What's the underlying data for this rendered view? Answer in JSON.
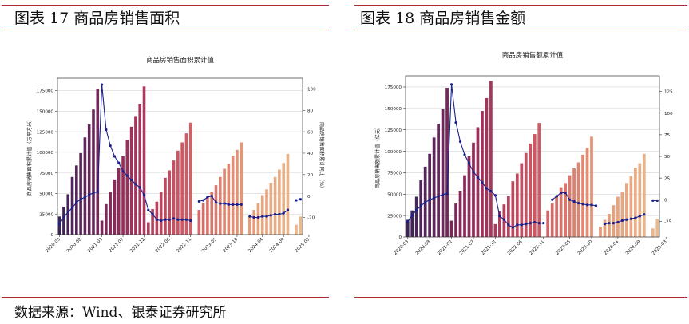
{
  "page": {
    "left_caption": "图表 17  商品房销售面积",
    "right_caption": "图表 18  商品房销售金额",
    "source": "数据来源：Wind、银泰证券研究所"
  },
  "chart_data": [
    {
      "type": "bar",
      "title": "商品房销售面积累计值",
      "ylabel": "商品房销售面积累计值（万平方米）",
      "y2label": "商品房销售面积累计同比（%）",
      "ylim": [
        0,
        190000
      ],
      "y_ticks": [
        0,
        25000,
        50000,
        75000,
        100000,
        125000,
        150000,
        175000
      ],
      "y2lim": [
        -36,
        110
      ],
      "y2_ticks": [
        -20,
        0,
        20,
        40,
        60,
        80,
        100
      ],
      "x_tick_labels": [
        "2020-03",
        "2020-08",
        "2021-02",
        "2021-07",
        "2021-12",
        "2022-06",
        "2022-11",
        "2023-05",
        "2023-10",
        "2024-04",
        "2024-09",
        "2025-03"
      ],
      "x_tick_index": [
        0,
        5,
        10,
        15,
        20,
        26,
        31,
        37,
        42,
        48,
        53,
        59
      ],
      "series": [
        {
          "name": "累计值",
          "values": [
            22000,
            34000,
            49000,
            70000,
            84000,
            99000,
            118000,
            134000,
            152000,
            177000,
            17000,
            37000,
            52000,
            67000,
            81000,
            95000,
            115000,
            131000,
            144000,
            159000,
            180000,
            15000,
            31000,
            40000,
            52000,
            69000,
            78000,
            90000,
            102000,
            112000,
            123000,
            136000,
            0,
            30000,
            38000,
            45000,
            52000,
            60000,
            70000,
            80000,
            86000,
            95000,
            103000,
            112000,
            0,
            22000,
            30000,
            38000,
            48000,
            55000,
            63000,
            70000,
            79000,
            87000,
            98000,
            0,
            12000,
            22000
          ]
        },
        {
          "name": "累计同比",
          "values": [
            -26,
            -20,
            -15,
            -11,
            -6,
            -3,
            -1,
            1,
            3,
            4,
            104,
            62,
            47,
            37,
            31,
            23,
            19,
            15,
            11,
            8,
            1,
            -13,
            -17,
            -22,
            -23,
            -22,
            -22,
            -21,
            -22,
            -22,
            -22,
            -23,
            null,
            -5,
            -4,
            -1,
            0,
            -6,
            -7,
            -7,
            -8,
            -8,
            -8,
            -8,
            null,
            -19,
            -20,
            -20,
            -19,
            -19,
            -18,
            -17,
            -17,
            -16,
            -13,
            null,
            -4,
            -3
          ]
        }
      ]
    },
    {
      "type": "bar",
      "title": "商品房销售额累计值",
      "ylabel": "商品房销售额累计值（亿元）",
      "y2label": "",
      "ylim": [
        0,
        188000
      ],
      "y_ticks": [
        0,
        25000,
        50000,
        75000,
        100000,
        125000,
        150000,
        175000
      ],
      "y2lim": [
        -43,
        143
      ],
      "y2_ticks": [
        -25,
        0,
        25,
        50,
        75,
        100,
        125
      ],
      "x_tick_labels": [
        "2020-03",
        "2020-08",
        "2021-02",
        "2021-07",
        "2021-12",
        "2022-06",
        "2022-11",
        "2023-05",
        "2023-10",
        "2024-04",
        "2024-09",
        "2025-03"
      ],
      "x_tick_index": [
        0,
        5,
        10,
        15,
        20,
        26,
        31,
        37,
        42,
        48,
        53,
        59
      ],
      "series": [
        {
          "name": "累计值",
          "values": [
            20000,
            31000,
            47000,
            66000,
            82000,
            97000,
            116000,
            132000,
            149000,
            174000,
            19000,
            39000,
            54000,
            72000,
            94000,
            110000,
            128000,
            147000,
            162000,
            182000,
            15000,
            30000,
            38000,
            48000,
            65000,
            74000,
            86000,
            98000,
            109000,
            120000,
            133000,
            0,
            31000,
            39000,
            48000,
            58000,
            63000,
            72000,
            80000,
            87000,
            96000,
            104000,
            117000,
            0,
            12000,
            20000,
            27000,
            37000,
            47000,
            53000,
            63000,
            71000,
            81000,
            86000,
            97000,
            0,
            10000,
            21000
          ]
        },
        {
          "name": "累计同比",
          "values": [
            -25,
            -18,
            -12,
            -7,
            -3,
            0,
            2,
            4,
            6,
            7,
            133,
            89,
            67,
            52,
            42,
            32,
            26,
            20,
            13,
            10,
            5,
            -19,
            -23,
            -29,
            -32,
            -29,
            -29,
            -28,
            -27,
            -26,
            -27,
            -27,
            null,
            0,
            4,
            8,
            8,
            0,
            -2,
            -4,
            -5,
            -6,
            -6,
            -7,
            null,
            -28,
            -27,
            -27,
            -26,
            -24,
            -23,
            -22,
            -21,
            -19,
            -17,
            null,
            -1,
            -1
          ]
        }
      ]
    }
  ]
}
